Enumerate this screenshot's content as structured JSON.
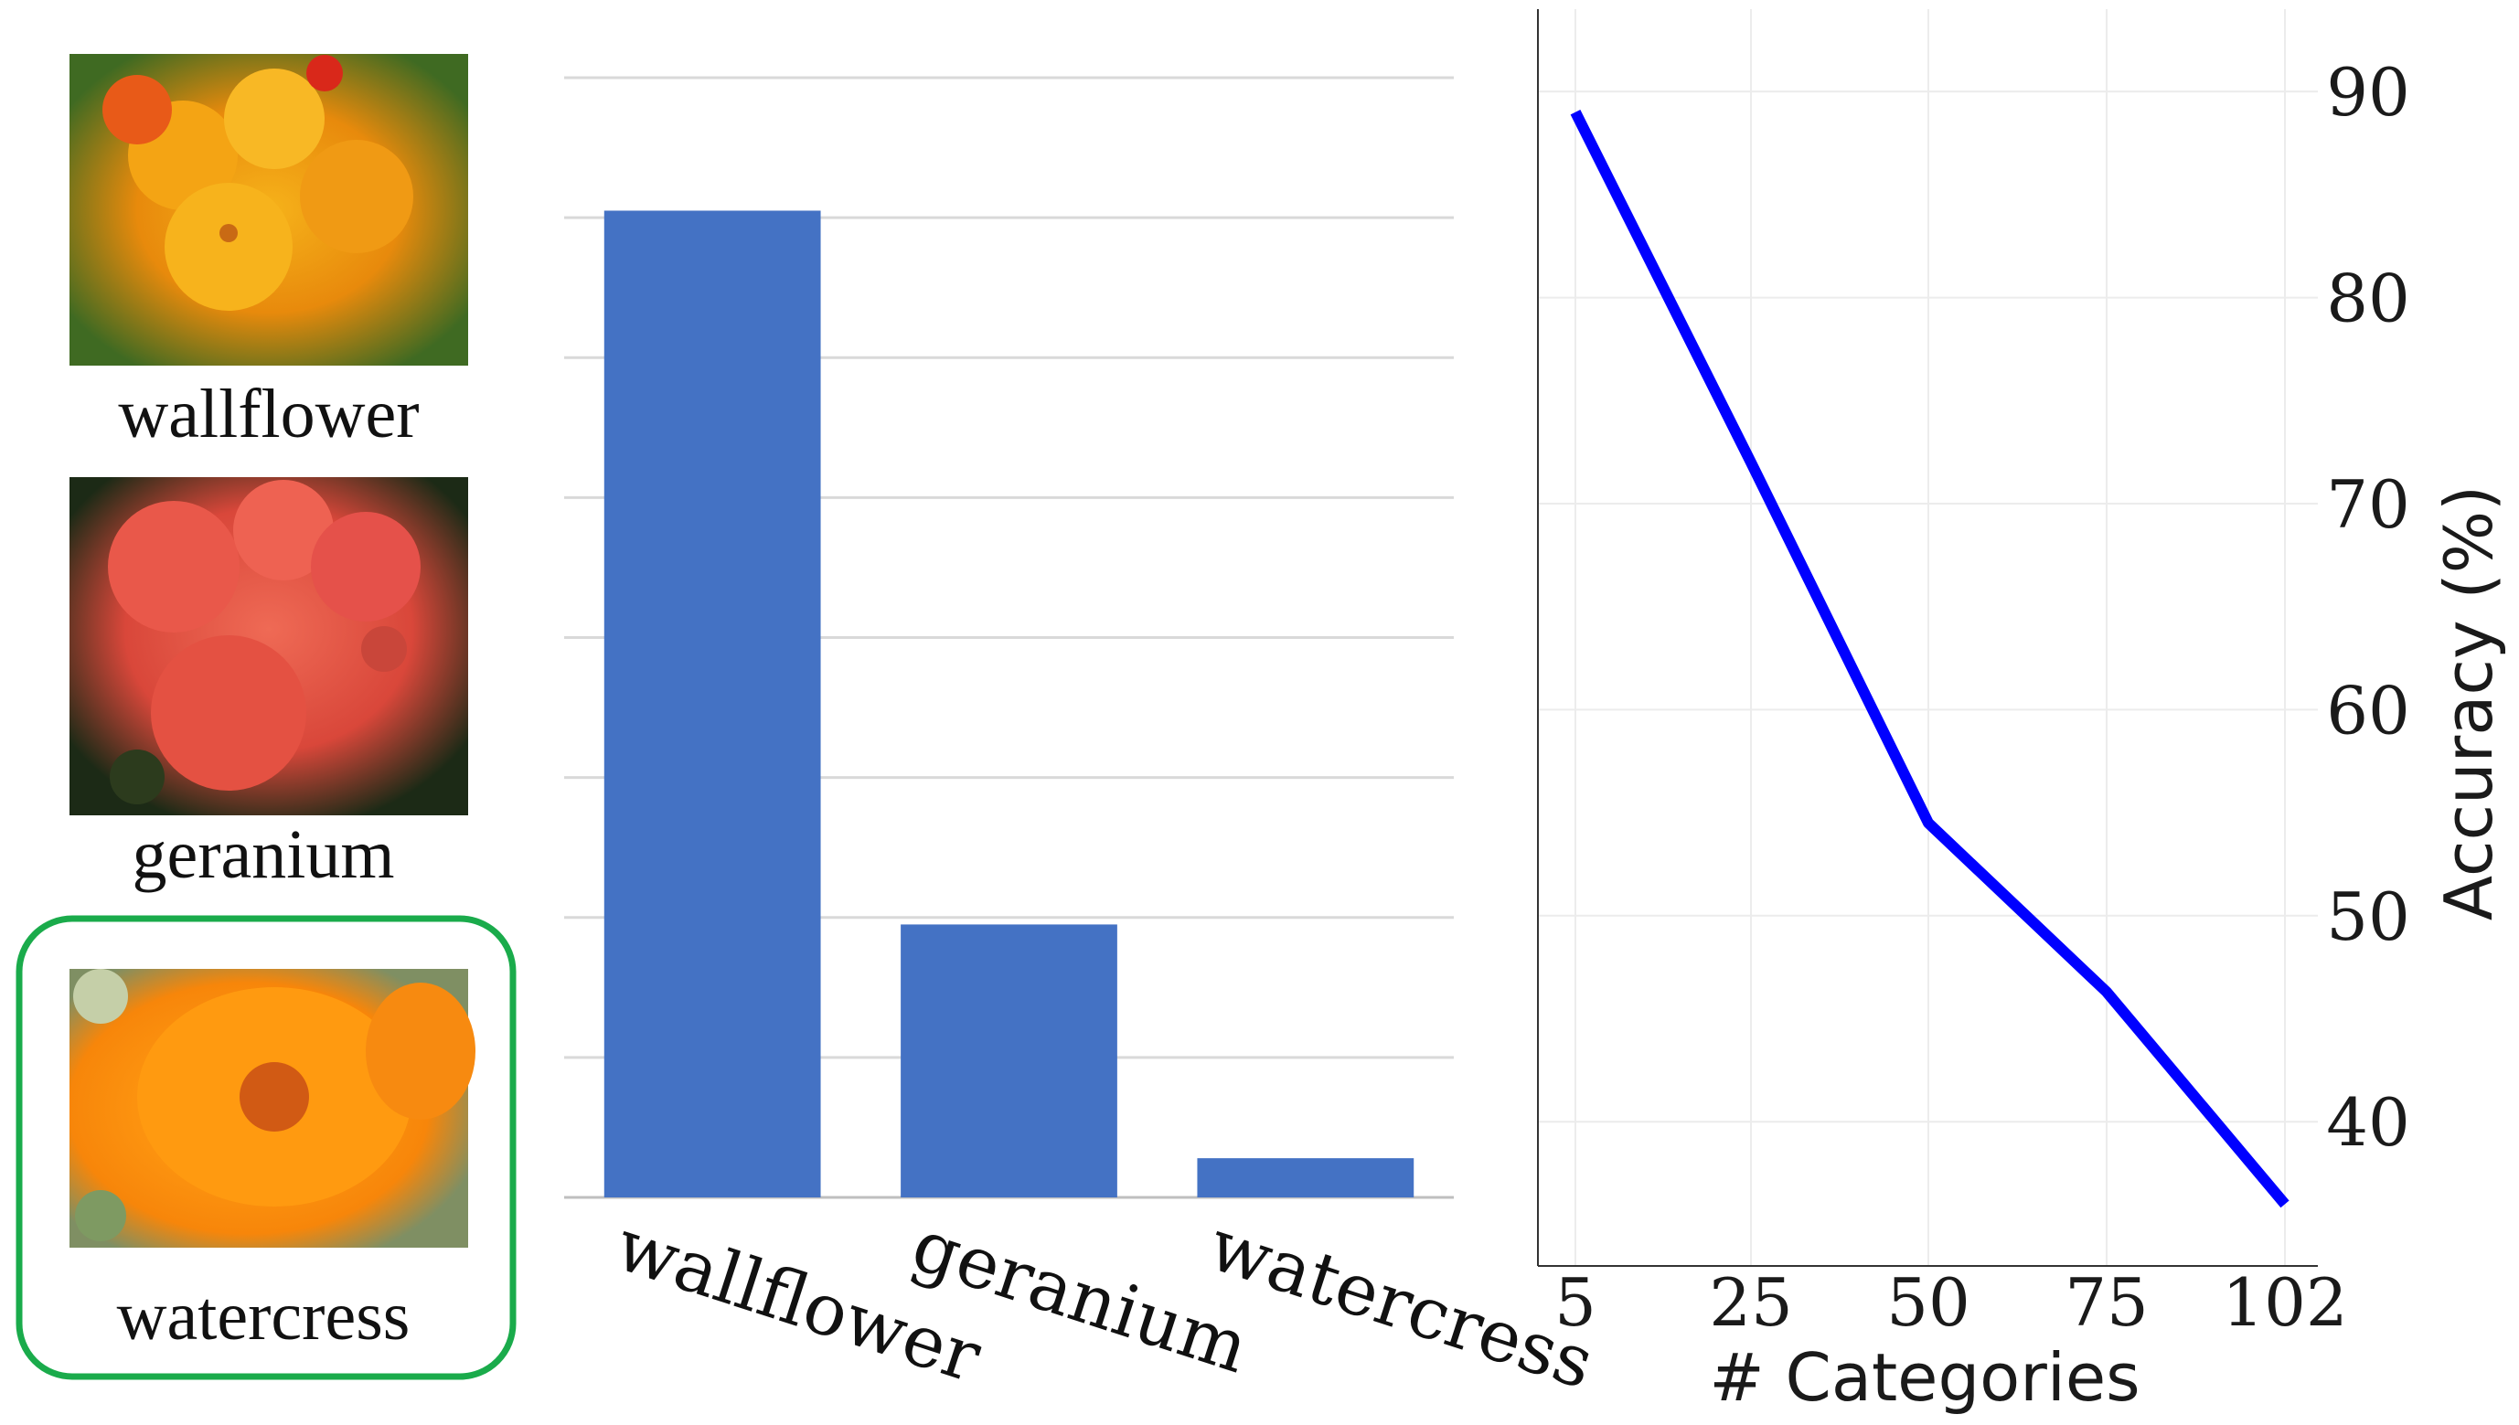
{
  "images": [
    {
      "label": "wallflower",
      "icon": "wallflower-photo",
      "highlighted": false
    },
    {
      "label": "geranium",
      "icon": "geranium-photo",
      "highlighted": false
    },
    {
      "label": "watercress",
      "icon": "watercress-photo",
      "highlighted": true
    }
  ],
  "colors": {
    "bar": "#4472c4",
    "line": "#0000ff",
    "highlight_box": "#1aab4b",
    "gridline": "#d9d9d9",
    "text": "#1a1a1a"
  },
  "chart_data": [
    {
      "type": "bar",
      "categories": [
        "wallflower",
        "geranium",
        "watercress"
      ],
      "values": [
        0.705,
        0.195,
        0.028
      ],
      "ylim": [
        0,
        0.8
      ],
      "grid": true,
      "show_y_ticks": false,
      "xtick_rotation_deg": 18
    },
    {
      "type": "line",
      "x": [
        5,
        25,
        50,
        75,
        102
      ],
      "x_ticks": [
        "5",
        "25",
        "50",
        "75",
        "102"
      ],
      "y": [
        89.0,
        72.0,
        54.5,
        46.3,
        36.0
      ],
      "y_ticks": [
        40,
        50,
        60,
        70,
        80,
        90
      ],
      "ylim": [
        33,
        94
      ],
      "xlabel": "# Categories",
      "ylabel": "Accuracy (%)",
      "y_axis_side": "right",
      "grid": true
    }
  ]
}
